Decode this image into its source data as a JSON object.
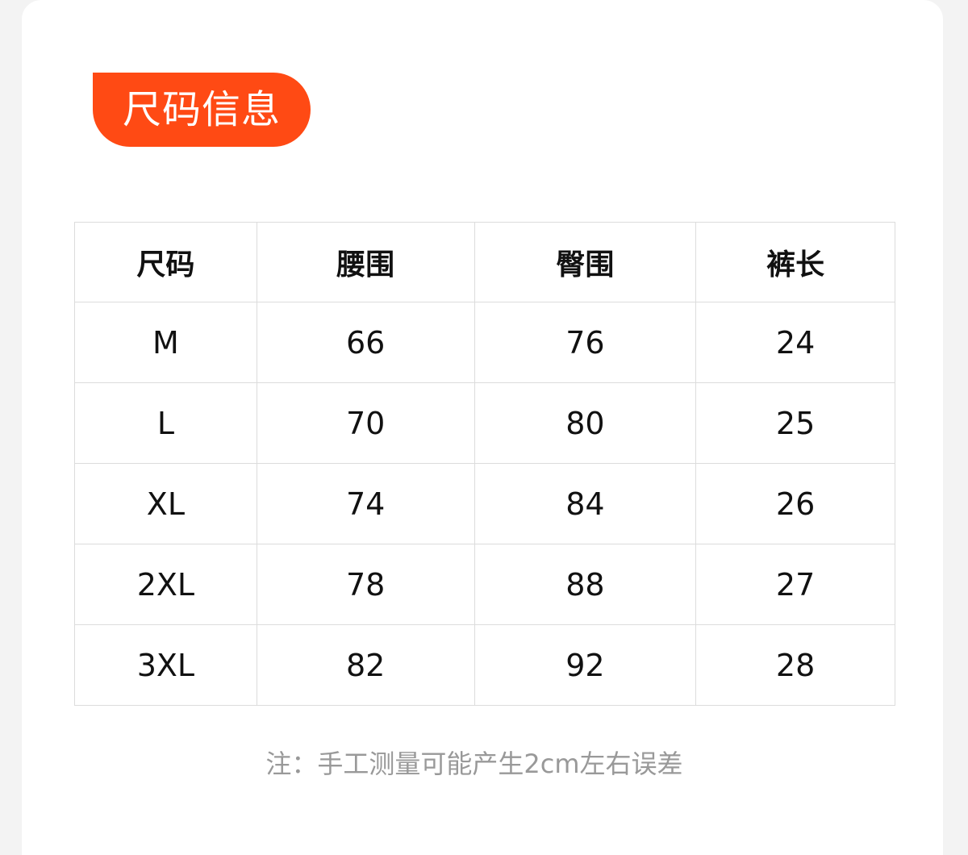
{
  "title": "尺码信息",
  "accent_color": "#ff4a14",
  "table": {
    "headers": [
      "尺码",
      "腰围",
      "臀围",
      "裤长"
    ],
    "rows": [
      [
        "M",
        "66",
        "76",
        "24"
      ],
      [
        "L",
        "70",
        "80",
        "25"
      ],
      [
        "XL",
        "74",
        "84",
        "26"
      ],
      [
        "2XL",
        "78",
        "88",
        "27"
      ],
      [
        "3XL",
        "82",
        "92",
        "28"
      ]
    ]
  },
  "note": "注：手工测量可能产生2cm左右误差"
}
